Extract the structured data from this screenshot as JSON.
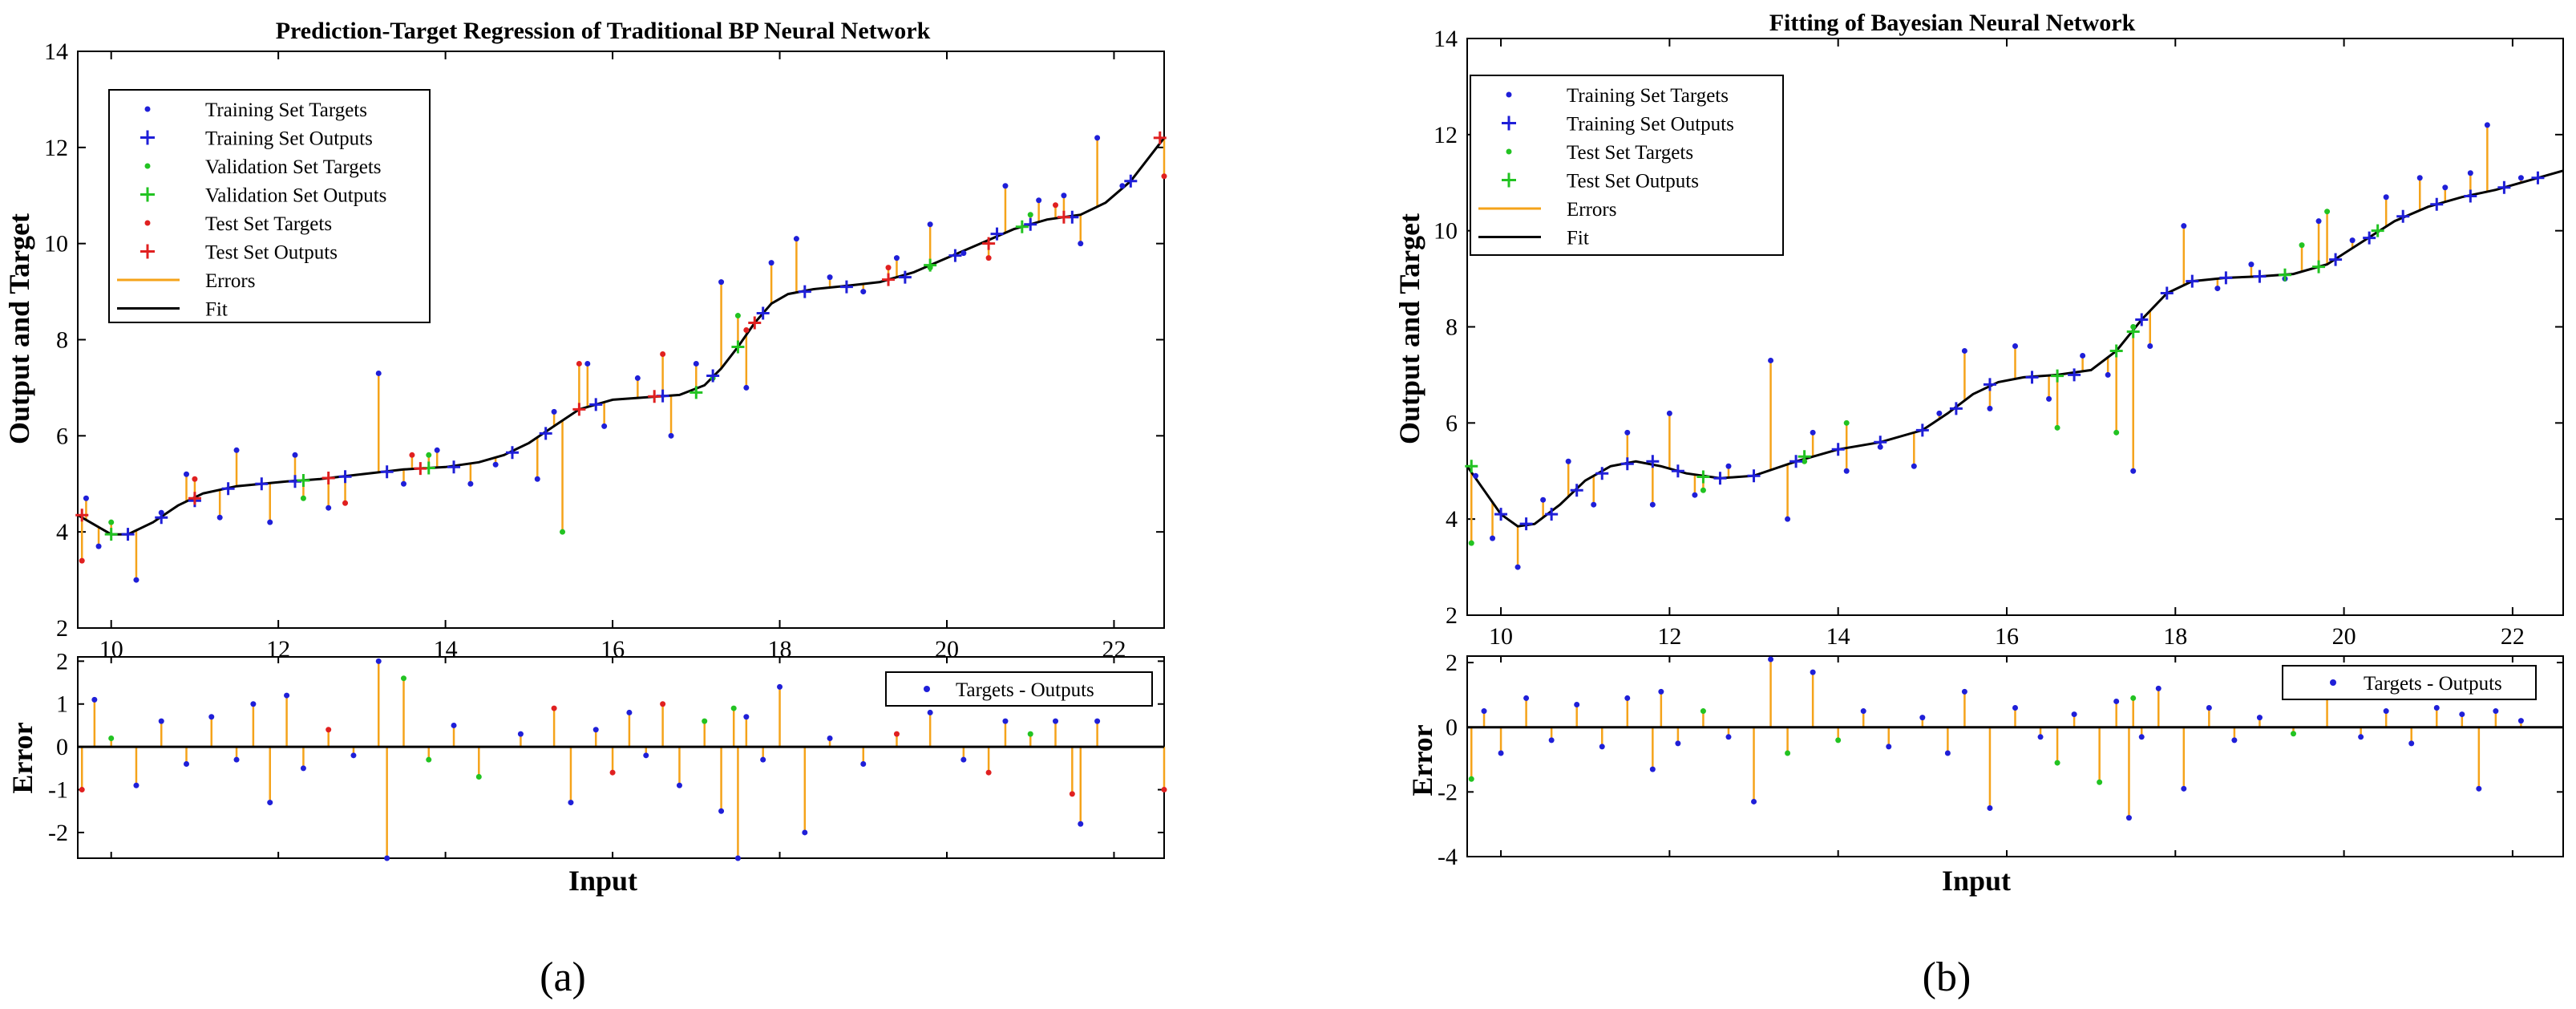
{
  "panels": [
    {
      "id": "a",
      "caption": "(a)",
      "error_legend": "Targets - Outputs",
      "colors": {
        "training": "#1f1fd8",
        "validation": "#22c322",
        "test": "#e02020",
        "errors": "#f5a31a",
        "fit": "#000000"
      },
      "legend": [
        {
          "label": "Training Set Targets",
          "kind": "dot",
          "color": "#1f1fd8"
        },
        {
          "label": "Training Set Outputs",
          "kind": "plus",
          "color": "#1f1fd8"
        },
        {
          "label": "Validation Set Targets",
          "kind": "dot",
          "color": "#22c322"
        },
        {
          "label": "Validation Set Outputs",
          "kind": "plus",
          "color": "#22c322"
        },
        {
          "label": "Test Set Targets",
          "kind": "dot",
          "color": "#e02020"
        },
        {
          "label": "Test Set Outputs",
          "kind": "plus",
          "color": "#e02020"
        },
        {
          "label": "Errors",
          "kind": "line",
          "color": "#f5a31a"
        },
        {
          "label": "Fit",
          "kind": "line",
          "color": "#000000"
        }
      ]
    },
    {
      "id": "b",
      "caption": "(b)",
      "error_legend": "Targets - Outputs",
      "colors": {
        "training": "#1f1fd8",
        "test": "#22c322",
        "errors": "#f5a31a",
        "fit": "#000000"
      },
      "legend": [
        {
          "label": "Training Set Targets",
          "kind": "dot",
          "color": "#1f1fd8"
        },
        {
          "label": "Training Set Outputs",
          "kind": "plus",
          "color": "#1f1fd8"
        },
        {
          "label": "Test Set Targets",
          "kind": "dot",
          "color": "#22c322"
        },
        {
          "label": "Test Set  Outputs",
          "kind": "plus",
          "color": "#22c322"
        },
        {
          "label": "Errors",
          "kind": "line",
          "color": "#f5a31a"
        },
        {
          "label": "Fit",
          "kind": "line",
          "color": "#000000"
        }
      ]
    }
  ],
  "chart_data": [
    {
      "type": "line",
      "panel": "a",
      "title": "Prediction-Target Regression of Traditional BP Neural Network",
      "xlabel": "Input",
      "ylabel": "Output and Target",
      "xlim": [
        9.6,
        22.6
      ],
      "ylim": [
        2,
        14
      ],
      "xticks": [
        10,
        12,
        14,
        16,
        18,
        20,
        22
      ],
      "yticks": [
        2,
        4,
        6,
        8,
        10,
        12,
        14
      ],
      "fit": {
        "name": "Fit",
        "x": [
          9.6,
          9.8,
          10.0,
          10.2,
          10.5,
          10.8,
          11.1,
          11.5,
          11.8,
          12.1,
          12.5,
          13.0,
          13.5,
          14.0,
          14.4,
          14.7,
          15.0,
          15.3,
          15.6,
          16.0,
          16.4,
          16.8,
          17.1,
          17.3,
          17.5,
          17.7,
          17.9,
          18.1,
          18.4,
          18.8,
          19.2,
          19.6,
          20.0,
          20.4,
          20.8,
          21.2,
          21.6,
          21.9,
          22.2,
          22.6
        ],
        "y": [
          4.35,
          4.15,
          3.95,
          3.95,
          4.2,
          4.55,
          4.8,
          4.95,
          5.0,
          5.05,
          5.1,
          5.2,
          5.3,
          5.35,
          5.45,
          5.6,
          5.85,
          6.2,
          6.55,
          6.75,
          6.8,
          6.85,
          7.05,
          7.4,
          7.85,
          8.35,
          8.75,
          8.95,
          9.05,
          9.12,
          9.2,
          9.4,
          9.7,
          10.0,
          10.3,
          10.5,
          10.6,
          10.85,
          11.3,
          12.2
        ]
      },
      "series": [
        {
          "name": "Training Set Targets",
          "x": [
            9.7,
            9.85,
            10.3,
            10.6,
            10.9,
            11.3,
            11.5,
            11.9,
            12.2,
            12.6,
            13.2,
            13.5,
            13.9,
            14.3,
            14.6,
            15.1,
            15.3,
            15.7,
            15.9,
            16.3,
            16.7,
            17.0,
            17.3,
            17.6,
            17.9,
            18.2,
            18.6,
            19.0,
            19.4,
            19.8,
            20.2,
            20.7,
            21.1,
            21.4,
            21.6,
            21.8,
            22.1
          ],
          "y": [
            4.7,
            3.7,
            3.0,
            4.4,
            5.2,
            4.3,
            5.7,
            4.2,
            5.6,
            4.5,
            7.3,
            5.0,
            5.7,
            5.0,
            5.4,
            5.1,
            6.5,
            7.5,
            6.2,
            7.2,
            6.0,
            7.5,
            9.2,
            7.0,
            9.6,
            10.1,
            9.3,
            9.0,
            9.7,
            10.4,
            9.8,
            11.2,
            10.9,
            11.0,
            10.0,
            12.2,
            11.2
          ]
        },
        {
          "name": "Training Set Outputs",
          "x": [
            10.2,
            10.6,
            11.0,
            11.4,
            11.8,
            12.2,
            12.8,
            13.3,
            14.1,
            14.8,
            15.2,
            15.8,
            16.6,
            17.2,
            17.8,
            18.3,
            18.8,
            19.5,
            20.1,
            20.6,
            21.0,
            21.5,
            22.2
          ],
          "y": [
            3.95,
            4.3,
            4.65,
            4.9,
            5.0,
            5.05,
            5.15,
            5.25,
            5.35,
            5.65,
            6.05,
            6.65,
            6.83,
            7.25,
            8.55,
            9.0,
            9.1,
            9.3,
            9.75,
            10.2,
            10.4,
            10.55,
            11.3
          ]
        },
        {
          "name": "Validation Set Targets",
          "x": [
            10.0,
            12.3,
            13.8,
            15.4,
            17.2,
            17.5,
            19.8,
            21.0
          ],
          "y": [
            4.2,
            4.7,
            5.6,
            4.0,
            7.2,
            8.5,
            9.5,
            10.6
          ]
        },
        {
          "name": "Validation Set Outputs",
          "x": [
            10.0,
            12.3,
            13.8,
            17.0,
            17.5,
            19.8,
            20.9
          ],
          "y": [
            3.95,
            5.07,
            5.33,
            6.9,
            7.85,
            9.55,
            10.35
          ]
        },
        {
          "name": "Test Set Targets",
          "x": [
            9.65,
            11.0,
            12.8,
            13.6,
            15.6,
            16.6,
            17.6,
            19.3,
            20.5,
            21.3,
            22.6
          ],
          "y": [
            3.4,
            5.1,
            4.6,
            5.6,
            7.5,
            7.7,
            8.2,
            9.5,
            9.7,
            10.8,
            11.4
          ]
        },
        {
          "name": "Test Set Outputs",
          "x": [
            9.65,
            11.0,
            12.6,
            13.7,
            15.6,
            16.5,
            17.7,
            19.3,
            20.5,
            21.4,
            22.55
          ],
          "y": [
            4.35,
            4.7,
            5.12,
            5.32,
            6.55,
            6.82,
            8.35,
            9.25,
            10.0,
            10.55,
            12.2
          ]
        }
      ],
      "error_plot": {
        "ylabel": "Error",
        "xlim": [
          9.6,
          22.6
        ],
        "ylim": [
          -2.6,
          2.1
        ],
        "yticks": [
          -2,
          -1,
          0,
          1,
          2
        ],
        "legend": "Targets - Outputs",
        "x": [
          9.65,
          9.8,
          10.0,
          10.3,
          10.6,
          10.9,
          11.2,
          11.5,
          11.7,
          11.9,
          12.1,
          12.3,
          12.6,
          12.9,
          13.2,
          13.3,
          13.5,
          13.8,
          14.1,
          14.4,
          14.9,
          15.3,
          15.5,
          15.8,
          16.0,
          16.2,
          16.4,
          16.6,
          16.8,
          17.1,
          17.3,
          17.45,
          17.5,
          17.6,
          17.8,
          18.0,
          18.3,
          18.6,
          19.0,
          19.4,
          19.8,
          20.2,
          20.5,
          20.7,
          21.0,
          21.3,
          21.5,
          21.6,
          21.8,
          22.6
        ],
        "y": [
          -1.0,
          1.1,
          0.2,
          -0.9,
          0.6,
          -0.4,
          0.7,
          -0.3,
          1.0,
          -1.3,
          1.2,
          -0.5,
          0.4,
          -0.2,
          2.0,
          -2.6,
          1.6,
          -0.3,
          0.5,
          -0.7,
          0.3,
          0.9,
          -1.3,
          0.4,
          -0.6,
          0.8,
          -0.2,
          1.0,
          -0.9,
          0.6,
          -1.5,
          0.9,
          -2.6,
          0.7,
          -0.3,
          1.4,
          -2.0,
          0.2,
          -0.4,
          0.3,
          0.8,
          -0.3,
          -0.6,
          0.6,
          0.3,
          0.6,
          -1.1,
          -1.8,
          0.6,
          -1.0
        ],
        "colors": [
          "red",
          "blue",
          "green",
          "blue",
          "blue",
          "blue",
          "blue",
          "blue",
          "blue",
          "blue",
          "blue",
          "blue",
          "red",
          "blue",
          "blue",
          "blue",
          "green",
          "green",
          "blue",
          "green",
          "blue",
          "red",
          "blue",
          "blue",
          "red",
          "blue",
          "blue",
          "red",
          "blue",
          "green",
          "blue",
          "green",
          "blue",
          "blue",
          "blue",
          "blue",
          "blue",
          "blue",
          "blue",
          "red",
          "blue",
          "blue",
          "red",
          "blue",
          "green",
          "blue",
          "red",
          "blue",
          "blue",
          "red"
        ]
      }
    },
    {
      "type": "line",
      "panel": "b",
      "title": "Fitting of Bayesian Neural Network",
      "xlabel": "Input",
      "ylabel": "Output and Target",
      "xlim": [
        9.6,
        22.6
      ],
      "ylim": [
        2,
        14
      ],
      "xticks": [
        10,
        12,
        14,
        16,
        18,
        20,
        22
      ],
      "yticks": [
        2,
        4,
        6,
        8,
        10,
        12,
        14
      ],
      "fit": {
        "name": "Fit",
        "x": [
          9.6,
          9.8,
          10.0,
          10.2,
          10.4,
          10.7,
          11.0,
          11.3,
          11.6,
          11.9,
          12.2,
          12.6,
          13.0,
          13.5,
          14.0,
          14.5,
          15.0,
          15.3,
          15.6,
          15.9,
          16.2,
          16.6,
          17.0,
          17.3,
          17.6,
          17.9,
          18.2,
          18.6,
          19.0,
          19.4,
          19.8,
          20.2,
          20.6,
          21.0,
          21.4,
          21.8,
          22.2,
          22.6
        ],
        "y": [
          5.1,
          4.6,
          4.1,
          3.85,
          3.9,
          4.3,
          4.8,
          5.1,
          5.2,
          5.1,
          4.95,
          4.85,
          4.9,
          5.2,
          5.45,
          5.6,
          5.85,
          6.2,
          6.6,
          6.85,
          6.95,
          7.0,
          7.1,
          7.5,
          8.15,
          8.7,
          8.95,
          9.02,
          9.05,
          9.1,
          9.3,
          9.75,
          10.2,
          10.5,
          10.7,
          10.85,
          11.05,
          11.25
        ]
      },
      "series": [
        {
          "name": "Training Set Targets",
          "x": [
            9.7,
            9.9,
            10.2,
            10.5,
            10.8,
            11.1,
            11.5,
            11.8,
            12.0,
            12.3,
            12.7,
            13.2,
            13.4,
            13.7,
            14.1,
            14.5,
            14.9,
            15.2,
            15.5,
            15.8,
            16.1,
            16.5,
            16.9,
            17.2,
            17.5,
            17.7,
            18.1,
            18.5,
            18.9,
            19.3,
            19.7,
            20.1,
            20.5,
            20.9,
            21.2,
            21.5,
            21.7,
            22.1
          ],
          "y": [
            4.9,
            3.6,
            3.0,
            4.4,
            5.2,
            4.3,
            5.8,
            4.3,
            6.2,
            4.5,
            5.1,
            7.3,
            4.0,
            5.8,
            5.0,
            5.5,
            5.1,
            6.2,
            7.5,
            6.3,
            7.6,
            6.5,
            7.4,
            7.0,
            5.0,
            7.6,
            10.1,
            8.8,
            9.3,
            9.0,
            10.2,
            9.8,
            10.7,
            11.1,
            10.9,
            11.2,
            12.2,
            11.1
          ]
        },
        {
          "name": "Training Set Outputs",
          "x": [
            10.0,
            10.3,
            10.6,
            10.9,
            11.2,
            11.5,
            11.8,
            12.1,
            12.6,
            13.0,
            13.5,
            14.0,
            14.5,
            15.0,
            15.4,
            15.8,
            16.3,
            16.8,
            17.6,
            17.9,
            18.2,
            18.6,
            19.0,
            19.9,
            20.3,
            20.7,
            21.1,
            21.5,
            21.9,
            22.3
          ],
          "y": [
            4.1,
            3.9,
            4.1,
            4.6,
            4.95,
            5.15,
            5.2,
            5.0,
            4.85,
            4.9,
            5.2,
            5.45,
            5.6,
            5.85,
            6.3,
            6.8,
            6.95,
            7.0,
            8.15,
            8.7,
            8.95,
            9.02,
            9.05,
            9.4,
            9.85,
            10.3,
            10.55,
            10.72,
            10.9,
            11.1
          ]
        },
        {
          "name": "Test Set Targets",
          "x": [
            9.65,
            12.4,
            13.6,
            14.1,
            16.6,
            17.3,
            17.5,
            19.5,
            19.8
          ],
          "y": [
            3.5,
            4.6,
            5.2,
            6.0,
            5.9,
            5.8,
            8.0,
            9.7,
            10.4
          ]
        },
        {
          "name": "Test Set  Outputs",
          "x": [
            9.65,
            12.4,
            13.6,
            16.6,
            17.3,
            17.5,
            19.3,
            19.7,
            20.4
          ],
          "y": [
            5.1,
            4.88,
            5.3,
            6.98,
            7.5,
            7.9,
            9.08,
            9.25,
            10.0
          ]
        }
      ],
      "error_plot": {
        "ylabel": "Error",
        "xlim": [
          9.6,
          22.6
        ],
        "ylim": [
          -4,
          2.2
        ],
        "yticks": [
          -4,
          -2,
          0,
          2
        ],
        "legend": "Targets - Outputs",
        "x": [
          9.65,
          9.8,
          10.0,
          10.3,
          10.6,
          10.9,
          11.2,
          11.5,
          11.8,
          11.9,
          12.1,
          12.4,
          12.7,
          13.0,
          13.2,
          13.4,
          13.7,
          14.0,
          14.3,
          14.6,
          15.0,
          15.3,
          15.5,
          15.8,
          16.1,
          16.4,
          16.6,
          16.8,
          17.1,
          17.3,
          17.45,
          17.5,
          17.6,
          17.8,
          18.1,
          18.4,
          18.7,
          19.0,
          19.4,
          19.8,
          20.2,
          20.5,
          20.8,
          21.1,
          21.4,
          21.6,
          21.8,
          22.1
        ],
        "y": [
          -1.6,
          0.5,
          -0.8,
          0.9,
          -0.4,
          0.7,
          -0.6,
          0.9,
          -1.3,
          1.1,
          -0.5,
          0.5,
          -0.3,
          -2.3,
          2.1,
          -0.8,
          1.7,
          -0.4,
          0.5,
          -0.6,
          0.3,
          -0.8,
          1.1,
          -2.5,
          0.6,
          -0.3,
          -1.1,
          0.4,
          -1.7,
          0.8,
          -2.8,
          0.9,
          -0.3,
          1.2,
          -1.9,
          0.6,
          -0.4,
          0.3,
          -0.2,
          1.1,
          -0.3,
          0.5,
          -0.5,
          0.6,
          0.4,
          -1.9,
          0.5,
          0.2
        ],
        "colors": [
          "green",
          "blue",
          "blue",
          "blue",
          "blue",
          "blue",
          "blue",
          "blue",
          "blue",
          "blue",
          "blue",
          "green",
          "blue",
          "blue",
          "blue",
          "green",
          "blue",
          "green",
          "blue",
          "blue",
          "blue",
          "blue",
          "blue",
          "blue",
          "blue",
          "blue",
          "green",
          "blue",
          "green",
          "blue",
          "blue",
          "green",
          "blue",
          "blue",
          "blue",
          "blue",
          "blue",
          "blue",
          "green",
          "green",
          "blue",
          "blue",
          "blue",
          "blue",
          "blue",
          "blue",
          "blue",
          "blue"
        ]
      }
    }
  ]
}
